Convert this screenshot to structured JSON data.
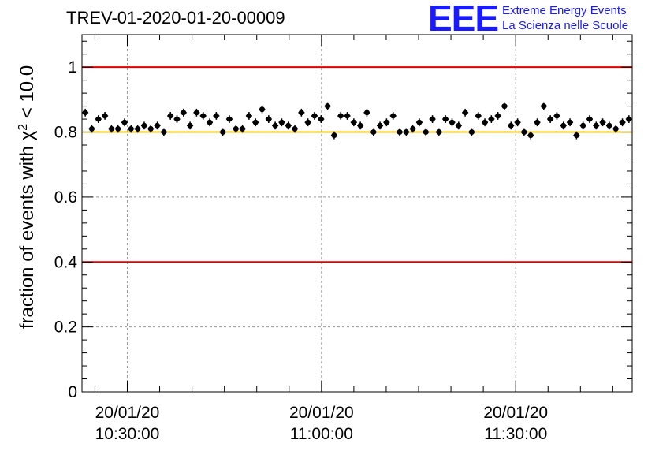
{
  "header": {
    "title": "TREV-01-2020-01-20-00009",
    "logo": "EEE",
    "org_line1": "Extreme Energy Events",
    "org_line2": "La Scienza nelle Scuole"
  },
  "colors": {
    "red_line": "#e00000",
    "yellow_line": "#f5c000",
    "markers": "#000000",
    "logo": "#1a1aff"
  },
  "chart_data": {
    "type": "scatter",
    "title": "TREV-01-2020-01-20-00009",
    "ylabel_prefix": "fraction of events with ",
    "ylabel_symbol": "χ",
    "ylabel_exp": "2",
    "ylabel_suffix": " < 10.0",
    "xlabel": "",
    "ylim": [
      0,
      1.1
    ],
    "xlim": [
      "2020-01-20 10:23:00",
      "2020-01-20 11:48:00"
    ],
    "yticks": [
      {
        "value": 0,
        "label": "0"
      },
      {
        "value": 0.2,
        "label": "0.2"
      },
      {
        "value": 0.4,
        "label": "0.4"
      },
      {
        "value": 0.6,
        "label": "0.6"
      },
      {
        "value": 0.8,
        "label": "0.8"
      },
      {
        "value": 1.0,
        "label": "1"
      }
    ],
    "xticks": [
      {
        "value": "2020-01-20 10:30:00",
        "date": "20/01/20",
        "time": "10:30:00"
      },
      {
        "value": "2020-01-20 11:00:00",
        "date": "20/01/20",
        "time": "11:00:00"
      },
      {
        "value": "2020-01-20 11:30:00",
        "date": "20/01/20",
        "time": "11:30:00"
      }
    ],
    "grid": true,
    "reference_lines": [
      {
        "y": 1.0,
        "color": "#e00000"
      },
      {
        "y": 0.8,
        "color": "#f5c000"
      },
      {
        "y": 0.4,
        "color": "#e00000"
      }
    ],
    "y_error": 0.012,
    "series": [
      {
        "values": [
          0.86,
          0.81,
          0.84,
          0.85,
          0.81,
          0.81,
          0.83,
          0.81,
          0.81,
          0.82,
          0.81,
          0.82,
          0.8,
          0.85,
          0.84,
          0.86,
          0.82,
          0.86,
          0.85,
          0.83,
          0.85,
          0.8,
          0.84,
          0.81,
          0.81,
          0.85,
          0.83,
          0.87,
          0.84,
          0.82,
          0.83,
          0.82,
          0.81,
          0.86,
          0.83,
          0.85,
          0.84,
          0.88,
          0.79,
          0.85,
          0.85,
          0.83,
          0.82,
          0.86,
          0.8,
          0.82,
          0.83,
          0.85,
          0.8,
          0.8,
          0.81,
          0.83,
          0.8,
          0.84,
          0.8,
          0.84,
          0.83,
          0.82,
          0.86,
          0.8,
          0.85,
          0.83,
          0.84,
          0.85,
          0.88,
          0.82,
          0.83,
          0.8,
          0.79,
          0.83,
          0.88,
          0.84,
          0.85,
          0.82,
          0.83,
          0.79,
          0.82,
          0.84,
          0.82,
          0.83,
          0.82,
          0.81,
          0.83,
          0.84
        ]
      }
    ]
  }
}
